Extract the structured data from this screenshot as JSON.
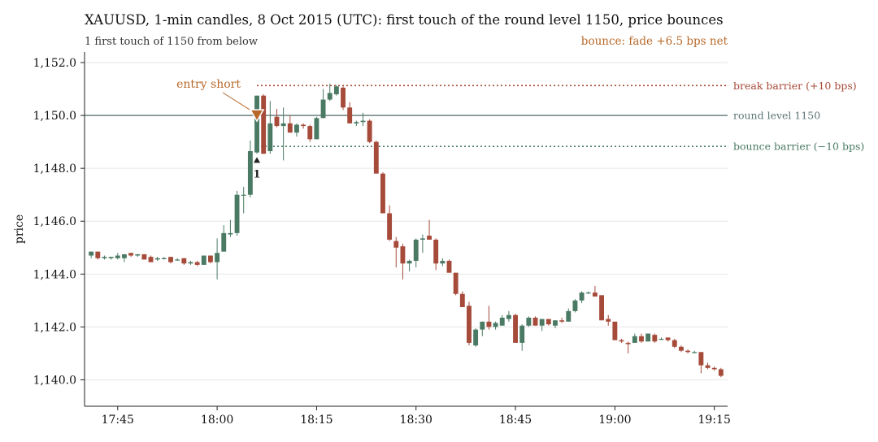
{
  "chart_data": {
    "type": "candlestick",
    "title": "XAUUSD, 1-min candles, 8 Oct 2015 (UTC): first touch of the round level 1150, price bounces",
    "subtitle_left": "1 first touch of 1150 from below",
    "subtitle_right": "bounce: fade +6.5 bps net",
    "xlabel": "",
    "ylabel": "price",
    "ylim": [
      1139.0,
      1152.4
    ],
    "x_start": "17:40",
    "x_end": "19:17",
    "y_ticks": [
      {
        "value": 1140,
        "label": "1,140.0"
      },
      {
        "value": 1142,
        "label": "1,142.0"
      },
      {
        "value": 1144,
        "label": "1,144.0"
      },
      {
        "value": 1146,
        "label": "1,146.0"
      },
      {
        "value": 1148,
        "label": "1,148.0"
      },
      {
        "value": 1150,
        "label": "1,150.0"
      },
      {
        "value": 1152,
        "label": "1,152.0"
      }
    ],
    "x_ticks": [
      "17:45",
      "18:00",
      "18:15",
      "18:30",
      "18:45",
      "19:00",
      "19:15"
    ],
    "grid": "horizontal",
    "colors": {
      "up": "#4a7a64",
      "down": "#a64a3a",
      "level": "#5f7575",
      "accent": "#b8692a",
      "text": "#222222"
    },
    "levels": [
      {
        "name": "break barrier",
        "value": 1151.13,
        "label": "break barrier (+10 bps)",
        "style": "dotted",
        "color": "#a64a3a"
      },
      {
        "name": "round level",
        "value": 1150.0,
        "label": "round level 1150",
        "style": "solid",
        "color": "#5f7575"
      },
      {
        "name": "bounce barrier",
        "value": 1148.83,
        "label": "bounce barrier (−10 bps)",
        "style": "dotted",
        "color": "#4a7a64"
      }
    ],
    "annotations": [
      {
        "text": "entry short",
        "time": "18:06",
        "price": 1150.0
      },
      {
        "text": "1",
        "time": "18:06",
        "price": 1148.3
      }
    ],
    "candles": [
      {
        "t": "17:41",
        "o": 1144.7,
        "h": 1144.85,
        "l": 1144.6,
        "c": 1144.85
      },
      {
        "t": "17:42",
        "o": 1144.85,
        "h": 1144.85,
        "l": 1144.55,
        "c": 1144.6
      },
      {
        "t": "17:43",
        "o": 1144.6,
        "h": 1144.7,
        "l": 1144.55,
        "c": 1144.65
      },
      {
        "t": "17:44",
        "o": 1144.6,
        "h": 1144.65,
        "l": 1144.55,
        "c": 1144.65
      },
      {
        "t": "17:45",
        "o": 1144.6,
        "h": 1144.8,
        "l": 1144.55,
        "c": 1144.7
      },
      {
        "t": "17:46",
        "o": 1144.6,
        "h": 1144.75,
        "l": 1144.45,
        "c": 1144.75
      },
      {
        "t": "17:47",
        "o": 1144.8,
        "h": 1144.8,
        "l": 1144.65,
        "c": 1144.7
      },
      {
        "t": "17:48",
        "o": 1144.7,
        "h": 1144.75,
        "l": 1144.65,
        "c": 1144.75
      },
      {
        "t": "17:49",
        "o": 1144.75,
        "h": 1144.75,
        "l": 1144.55,
        "c": 1144.55
      },
      {
        "t": "17:50",
        "o": 1144.65,
        "h": 1144.7,
        "l": 1144.45,
        "c": 1144.45
      },
      {
        "t": "17:51",
        "o": 1144.55,
        "h": 1144.65,
        "l": 1144.5,
        "c": 1144.6
      },
      {
        "t": "17:52",
        "o": 1144.6,
        "h": 1144.65,
        "l": 1144.55,
        "c": 1144.6
      },
      {
        "t": "17:53",
        "o": 1144.65,
        "h": 1144.65,
        "l": 1144.4,
        "c": 1144.45
      },
      {
        "t": "17:54",
        "o": 1144.55,
        "h": 1144.6,
        "l": 1144.5,
        "c": 1144.55
      },
      {
        "t": "17:55",
        "o": 1144.6,
        "h": 1144.6,
        "l": 1144.35,
        "c": 1144.4
      },
      {
        "t": "17:56",
        "o": 1144.4,
        "h": 1144.5,
        "l": 1144.35,
        "c": 1144.45
      },
      {
        "t": "17:57",
        "o": 1144.45,
        "h": 1144.5,
        "l": 1144.3,
        "c": 1144.35
      },
      {
        "t": "17:58",
        "o": 1144.35,
        "h": 1144.7,
        "l": 1144.35,
        "c": 1144.7
      },
      {
        "t": "17:59",
        "o": 1144.7,
        "h": 1144.7,
        "l": 1144.4,
        "c": 1144.45
      },
      {
        "t": "18:00",
        "o": 1144.45,
        "h": 1145.35,
        "l": 1143.8,
        "c": 1144.8
      },
      {
        "t": "18:01",
        "o": 1144.85,
        "h": 1145.85,
        "l": 1144.85,
        "c": 1145.55
      },
      {
        "t": "18:02",
        "o": 1145.5,
        "h": 1146.05,
        "l": 1145.4,
        "c": 1145.55
      },
      {
        "t": "18:03",
        "o": 1145.55,
        "h": 1147.15,
        "l": 1145.45,
        "c": 1147.0
      },
      {
        "t": "18:04",
        "o": 1147.0,
        "h": 1147.3,
        "l": 1146.3,
        "c": 1147.0
      },
      {
        "t": "18:05",
        "o": 1147.0,
        "h": 1149.05,
        "l": 1146.9,
        "c": 1148.65
      },
      {
        "t": "18:06",
        "o": 1148.6,
        "h": 1150.75,
        "l": 1148.55,
        "c": 1150.75
      },
      {
        "t": "18:07",
        "o": 1150.75,
        "h": 1150.8,
        "l": 1148.55,
        "c": 1148.55
      },
      {
        "t": "18:08",
        "o": 1148.65,
        "h": 1150.55,
        "l": 1148.55,
        "c": 1149.7
      },
      {
        "t": "18:09",
        "o": 1149.95,
        "h": 1150.25,
        "l": 1149.55,
        "c": 1149.6
      },
      {
        "t": "18:10",
        "o": 1149.6,
        "h": 1150.3,
        "l": 1148.3,
        "c": 1149.7
      },
      {
        "t": "18:11",
        "o": 1149.7,
        "h": 1150.0,
        "l": 1149.35,
        "c": 1149.35
      },
      {
        "t": "18:12",
        "o": 1149.35,
        "h": 1149.7,
        "l": 1149.2,
        "c": 1149.65
      },
      {
        "t": "18:13",
        "o": 1149.65,
        "h": 1149.7,
        "l": 1149.5,
        "c": 1149.6
      },
      {
        "t": "18:14",
        "o": 1149.6,
        "h": 1149.65,
        "l": 1149.0,
        "c": 1149.1
      },
      {
        "t": "18:15",
        "o": 1149.1,
        "h": 1149.95,
        "l": 1149.1,
        "c": 1149.9
      },
      {
        "t": "18:16",
        "o": 1149.9,
        "h": 1151.0,
        "l": 1149.9,
        "c": 1150.6
      },
      {
        "t": "18:17",
        "o": 1150.6,
        "h": 1151.2,
        "l": 1150.55,
        "c": 1150.85
      },
      {
        "t": "18:18",
        "o": 1150.8,
        "h": 1151.15,
        "l": 1150.75,
        "c": 1151.1
      },
      {
        "t": "18:19",
        "o": 1151.05,
        "h": 1151.1,
        "l": 1150.2,
        "c": 1150.3
      },
      {
        "t": "18:20",
        "o": 1150.3,
        "h": 1150.5,
        "l": 1149.7,
        "c": 1149.7
      },
      {
        "t": "18:21",
        "o": 1149.7,
        "h": 1149.8,
        "l": 1149.6,
        "c": 1149.75
      },
      {
        "t": "18:22",
        "o": 1149.75,
        "h": 1150.1,
        "l": 1149.6,
        "c": 1149.8
      },
      {
        "t": "18:23",
        "o": 1149.8,
        "h": 1149.85,
        "l": 1148.95,
        "c": 1149.0
      },
      {
        "t": "18:24",
        "o": 1149.0,
        "h": 1149.05,
        "l": 1147.8,
        "c": 1147.8
      },
      {
        "t": "18:25",
        "o": 1147.8,
        "h": 1147.85,
        "l": 1146.3,
        "c": 1146.3
      },
      {
        "t": "18:26",
        "o": 1146.3,
        "h": 1146.6,
        "l": 1145.25,
        "c": 1145.3
      },
      {
        "t": "18:27",
        "o": 1145.25,
        "h": 1145.4,
        "l": 1144.25,
        "c": 1145.0
      },
      {
        "t": "18:28",
        "o": 1145.05,
        "h": 1145.15,
        "l": 1143.8,
        "c": 1144.4
      },
      {
        "t": "18:29",
        "o": 1144.4,
        "h": 1144.55,
        "l": 1144.1,
        "c": 1144.5
      },
      {
        "t": "18:30",
        "o": 1144.5,
        "h": 1145.35,
        "l": 1144.25,
        "c": 1145.3
      },
      {
        "t": "18:31",
        "o": 1145.3,
        "h": 1145.5,
        "l": 1144.8,
        "c": 1145.35
      },
      {
        "t": "18:32",
        "o": 1145.45,
        "h": 1146.05,
        "l": 1145.3,
        "c": 1145.3
      },
      {
        "t": "18:33",
        "o": 1145.3,
        "h": 1145.35,
        "l": 1144.15,
        "c": 1144.4
      },
      {
        "t": "18:34",
        "o": 1144.4,
        "h": 1144.6,
        "l": 1144.3,
        "c": 1144.5
      },
      {
        "t": "18:35",
        "o": 1144.5,
        "h": 1144.55,
        "l": 1144.05,
        "c": 1144.05
      },
      {
        "t": "18:36",
        "o": 1144.05,
        "h": 1144.05,
        "l": 1143.2,
        "c": 1143.25
      },
      {
        "t": "18:37",
        "o": 1143.25,
        "h": 1143.35,
        "l": 1142.75,
        "c": 1142.75
      },
      {
        "t": "18:38",
        "o": 1142.8,
        "h": 1142.95,
        "l": 1141.3,
        "c": 1141.4
      },
      {
        "t": "18:39",
        "o": 1141.3,
        "h": 1141.95,
        "l": 1141.25,
        "c": 1141.9
      },
      {
        "t": "18:40",
        "o": 1141.9,
        "h": 1142.2,
        "l": 1141.65,
        "c": 1142.2
      },
      {
        "t": "18:41",
        "o": 1142.2,
        "h": 1142.8,
        "l": 1141.9,
        "c": 1142.0
      },
      {
        "t": "18:42",
        "o": 1142.0,
        "h": 1142.2,
        "l": 1141.9,
        "c": 1142.15
      },
      {
        "t": "18:43",
        "o": 1142.05,
        "h": 1142.45,
        "l": 1142.05,
        "c": 1142.35
      },
      {
        "t": "18:44",
        "o": 1142.3,
        "h": 1142.6,
        "l": 1142.2,
        "c": 1142.45
      },
      {
        "t": "18:45",
        "o": 1142.45,
        "h": 1142.5,
        "l": 1141.4,
        "c": 1141.4
      },
      {
        "t": "18:46",
        "o": 1141.4,
        "h": 1142.1,
        "l": 1141.1,
        "c": 1142.05
      },
      {
        "t": "18:47",
        "o": 1142.05,
        "h": 1142.4,
        "l": 1142.0,
        "c": 1142.35
      },
      {
        "t": "18:48",
        "o": 1142.35,
        "h": 1142.4,
        "l": 1142.05,
        "c": 1142.05
      },
      {
        "t": "18:49",
        "o": 1142.05,
        "h": 1142.3,
        "l": 1141.85,
        "c": 1142.3
      },
      {
        "t": "18:50",
        "o": 1142.3,
        "h": 1142.3,
        "l": 1142.05,
        "c": 1142.1
      },
      {
        "t": "18:51",
        "o": 1142.05,
        "h": 1142.25,
        "l": 1141.95,
        "c": 1142.25
      },
      {
        "t": "18:52",
        "o": 1142.25,
        "h": 1142.35,
        "l": 1142.15,
        "c": 1142.2
      },
      {
        "t": "18:53",
        "o": 1142.2,
        "h": 1142.7,
        "l": 1142.2,
        "c": 1142.6
      },
      {
        "t": "18:54",
        "o": 1142.6,
        "h": 1143.05,
        "l": 1142.55,
        "c": 1143.0
      },
      {
        "t": "18:55",
        "o": 1143.0,
        "h": 1143.35,
        "l": 1142.9,
        "c": 1143.3
      },
      {
        "t": "18:56",
        "o": 1143.3,
        "h": 1143.35,
        "l": 1143.25,
        "c": 1143.3
      },
      {
        "t": "18:57",
        "o": 1143.3,
        "h": 1143.55,
        "l": 1143.15,
        "c": 1143.15
      },
      {
        "t": "18:58",
        "o": 1143.2,
        "h": 1143.2,
        "l": 1142.25,
        "c": 1142.25
      },
      {
        "t": "18:59",
        "o": 1142.3,
        "h": 1142.45,
        "l": 1142.05,
        "c": 1142.2
      },
      {
        "t": "19:00",
        "o": 1142.2,
        "h": 1142.2,
        "l": 1141.5,
        "c": 1141.5
      },
      {
        "t": "19:01",
        "o": 1141.5,
        "h": 1141.55,
        "l": 1141.4,
        "c": 1141.45
      },
      {
        "t": "19:02",
        "o": 1141.4,
        "h": 1141.45,
        "l": 1141.0,
        "c": 1141.35
      },
      {
        "t": "19:03",
        "o": 1141.4,
        "h": 1141.75,
        "l": 1141.4,
        "c": 1141.65
      },
      {
        "t": "19:04",
        "o": 1141.65,
        "h": 1141.75,
        "l": 1141.4,
        "c": 1141.45
      },
      {
        "t": "19:05",
        "o": 1141.45,
        "h": 1141.75,
        "l": 1141.45,
        "c": 1141.75
      },
      {
        "t": "19:06",
        "o": 1141.7,
        "h": 1141.75,
        "l": 1141.4,
        "c": 1141.45
      },
      {
        "t": "19:07",
        "o": 1141.55,
        "h": 1141.6,
        "l": 1141.5,
        "c": 1141.55
      },
      {
        "t": "19:08",
        "o": 1141.6,
        "h": 1141.6,
        "l": 1141.45,
        "c": 1141.5
      },
      {
        "t": "19:09",
        "o": 1141.5,
        "h": 1141.55,
        "l": 1141.2,
        "c": 1141.25
      },
      {
        "t": "19:10",
        "o": 1141.25,
        "h": 1141.3,
        "l": 1141.05,
        "c": 1141.1
      },
      {
        "t": "19:11",
        "o": 1141.1,
        "h": 1141.15,
        "l": 1141.0,
        "c": 1141.05
      },
      {
        "t": "19:12",
        "o": 1141.05,
        "h": 1141.1,
        "l": 1141.0,
        "c": 1141.05
      },
      {
        "t": "19:13",
        "o": 1141.05,
        "h": 1141.05,
        "l": 1140.25,
        "c": 1140.55
      },
      {
        "t": "19:14",
        "o": 1140.55,
        "h": 1140.65,
        "l": 1140.4,
        "c": 1140.45
      },
      {
        "t": "19:15",
        "o": 1140.45,
        "h": 1140.5,
        "l": 1140.35,
        "c": 1140.4
      },
      {
        "t": "19:16",
        "o": 1140.4,
        "h": 1140.45,
        "l": 1140.1,
        "c": 1140.15
      }
    ]
  }
}
